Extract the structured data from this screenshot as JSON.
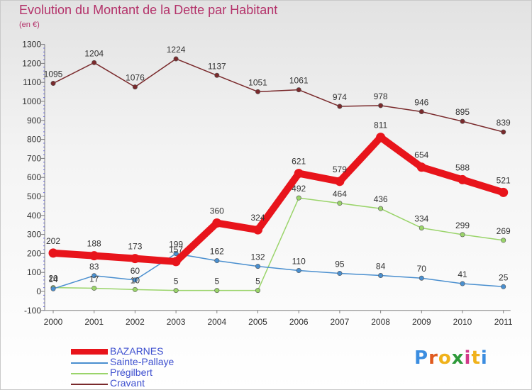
{
  "header": {
    "title": "Evolution du Montant de la Dette par Habitant",
    "subtitle": "(en €)"
  },
  "logo": {
    "text": "Proxiti",
    "letter_colors": [
      "#3b8de0",
      "#e05a1e",
      "#f0b21b",
      "#2e9a3a",
      "#d23a8a",
      "#f0b21b",
      "#3b8de0"
    ]
  },
  "chart_data": {
    "type": "line",
    "title": "Evolution du Montant de la Dette par Habitant",
    "subtitle": "(en €)",
    "xlabel": "",
    "ylabel": "",
    "categories": [
      "2000",
      "2001",
      "2002",
      "2003",
      "2004",
      "2005",
      "2006",
      "2007",
      "2008",
      "2009",
      "2010",
      "2011"
    ],
    "ylim": [
      -100,
      1300
    ],
    "yticks": [
      -100,
      0,
      100,
      200,
      300,
      400,
      500,
      600,
      700,
      800,
      900,
      1000,
      1100,
      1200,
      1300
    ],
    "grid": false,
    "legend_position": "bottom-left",
    "series": [
      {
        "name": "BAZARNES",
        "color": "#e8141b",
        "values": [
          202,
          188,
          173,
          157,
          360,
          324,
          621,
          579,
          811,
          654,
          588,
          521
        ],
        "labels": [
          "202",
          "188",
          "173",
          "157",
          "360",
          "324",
          "621",
          "579",
          "811",
          "654",
          "588",
          "521"
        ]
      },
      {
        "name": "Sainte-Pallaye",
        "color": "#4a8fcf",
        "values": [
          14,
          83,
          60,
          199,
          162,
          132,
          110,
          95,
          84,
          70,
          41,
          25
        ],
        "labels": [
          "14",
          "83",
          "60",
          "199",
          "162",
          "132",
          "110",
          "95",
          "84",
          "70",
          "41",
          "25"
        ]
      },
      {
        "name": "Prégilbert",
        "color": "#9ad46a",
        "values": [
          20,
          17,
          10,
          5,
          5,
          5,
          492,
          464,
          436,
          334,
          299,
          269
        ],
        "labels": [
          "20",
          "17",
          "10",
          "5",
          "5",
          "5",
          "492",
          "464",
          "436",
          "334",
          "299",
          "269"
        ]
      },
      {
        "name": "Cravant",
        "color": "#7a2a2c",
        "values": [
          1095,
          1204,
          1076,
          1224,
          1137,
          1051,
          1061,
          974,
          978,
          946,
          895,
          839
        ],
        "labels": [
          "1095",
          "1204",
          "1076",
          "1224",
          "1137",
          "1051",
          "1061",
          "974",
          "978",
          "946",
          "895",
          "839"
        ]
      }
    ]
  }
}
